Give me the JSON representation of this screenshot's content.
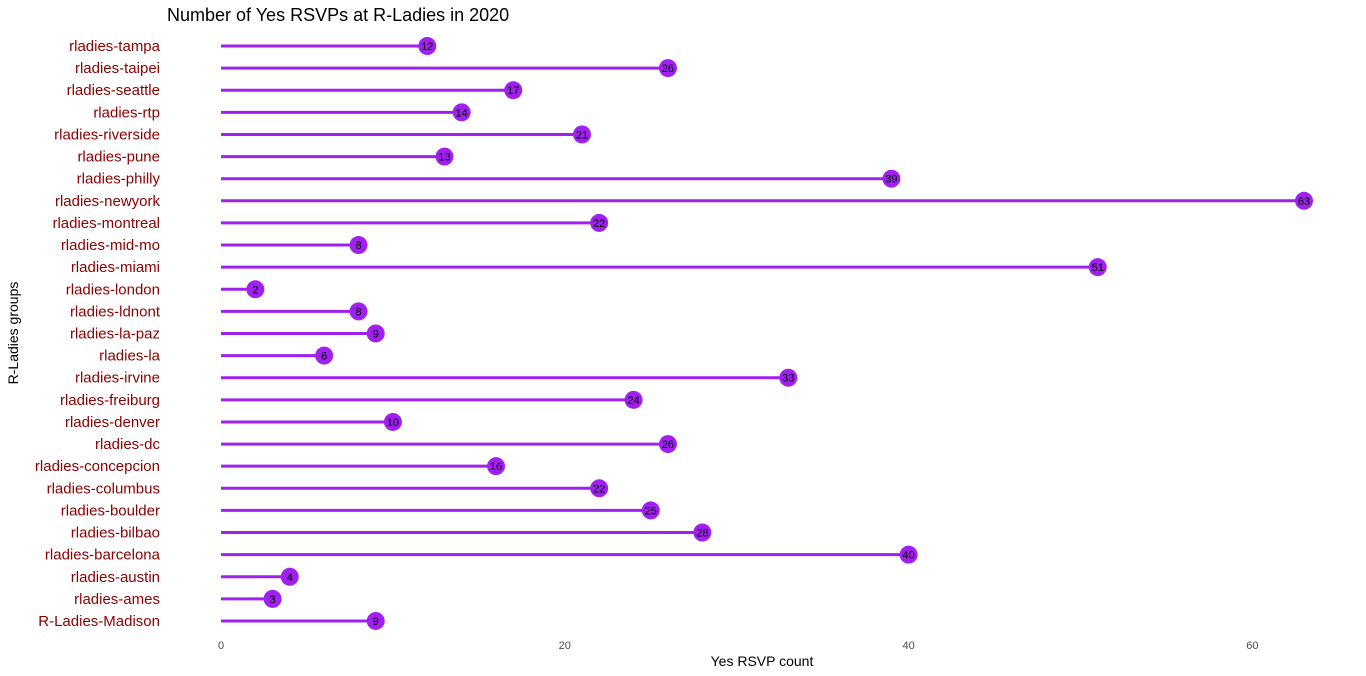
{
  "chart_data": {
    "type": "lollipop",
    "orientation": "horizontal",
    "title": "Number of Yes RSVPs at R-Ladies in 2020",
    "xlabel": "Yes RSVP count",
    "ylabel": "R-Ladies groups",
    "xlim": [
      0,
      63
    ],
    "xticks": [
      0,
      20,
      40,
      60
    ],
    "grid": false,
    "colors": {
      "stem": "#a020f0",
      "dot": "#a020f0",
      "category_label": "#8b0000",
      "value_label": "#000000"
    },
    "categories": [
      "rladies-tampa",
      "rladies-taipei",
      "rladies-seattle",
      "rladies-rtp",
      "rladies-riverside",
      "rladies-pune",
      "rladies-philly",
      "rladies-newyork",
      "rladies-montreal",
      "rladies-mid-mo",
      "rladies-miami",
      "rladies-london",
      "rladies-ldnont",
      "rladies-la-paz",
      "rladies-la",
      "rladies-irvine",
      "rladies-freiburg",
      "rladies-denver",
      "rladies-dc",
      "rladies-concepcion",
      "rladies-columbus",
      "rladies-boulder",
      "rladies-bilbao",
      "rladies-barcelona",
      "rladies-austin",
      "rladies-ames",
      "R-Ladies-Madison"
    ],
    "values": [
      12,
      26,
      17,
      14,
      21,
      13,
      39,
      63,
      22,
      8,
      51,
      2,
      8,
      9,
      6,
      33,
      24,
      10,
      26,
      16,
      22,
      25,
      28,
      40,
      4,
      3,
      9
    ]
  }
}
